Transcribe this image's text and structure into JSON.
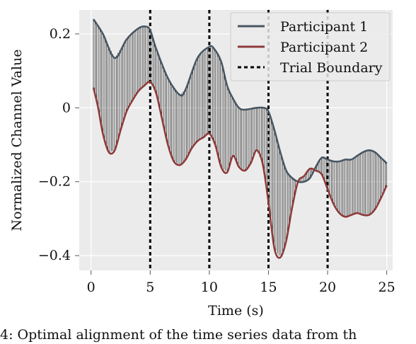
{
  "chart_data": {
    "type": "line",
    "title": "",
    "xlabel": "Time (s)",
    "ylabel": "Normalized Channel Value",
    "xlim": [
      -1,
      25.5
    ],
    "ylim": [
      -0.44,
      0.265
    ],
    "xticks": [
      0,
      5,
      10,
      15,
      20,
      25
    ],
    "xtick_labels": [
      "0",
      "5",
      "10",
      "15",
      "20",
      "25"
    ],
    "yticks": [
      -0.4,
      -0.2,
      0,
      0.2
    ],
    "ytick_labels": [
      "−0.4",
      "−0.2",
      "0",
      "0.2"
    ],
    "grid": true,
    "legend_position": "top-right",
    "series": [
      {
        "name": "Participant 1",
        "color": "#485663",
        "x": [
          0.2,
          1.0,
          2.0,
          3.0,
          4.0,
          4.6,
          5.0,
          5.5,
          6.5,
          7.5,
          8.0,
          9.0,
          10.0,
          10.4,
          11.0,
          11.5,
          12.0,
          12.5,
          13.0,
          14.0,
          14.6,
          15.0,
          15.5,
          16.0,
          16.5,
          17.0,
          17.5,
          18.0,
          18.5,
          19.0,
          19.5,
          20.0,
          20.5,
          21.0,
          21.5,
          22.0,
          22.5,
          23.0,
          23.5,
          24.0,
          24.5,
          25.0
        ],
        "y": [
          0.24,
          0.2,
          0.135,
          0.185,
          0.215,
          0.22,
          0.21,
          0.16,
          0.08,
          0.035,
          0.05,
          0.135,
          0.165,
          0.16,
          0.125,
          0.06,
          0.025,
          0.0,
          -0.005,
          0.0,
          0.0,
          -0.01,
          -0.06,
          -0.12,
          -0.17,
          -0.19,
          -0.2,
          -0.2,
          -0.19,
          -0.16,
          -0.135,
          -0.14,
          -0.145,
          -0.145,
          -0.14,
          -0.14,
          -0.13,
          -0.12,
          -0.115,
          -0.12,
          -0.135,
          -0.15
        ]
      },
      {
        "name": "Participant 2",
        "color": "#8e3b3b",
        "x": [
          0.2,
          0.6,
          1.0,
          1.5,
          2.0,
          2.5,
          3.0,
          3.5,
          4.0,
          4.5,
          5.0,
          5.5,
          6.0,
          6.5,
          7.0,
          7.5,
          8.0,
          8.5,
          9.0,
          9.5,
          10.0,
          10.5,
          11.0,
          11.5,
          12.0,
          12.5,
          13.0,
          13.5,
          14.0,
          14.5,
          15.0,
          15.5,
          16.0,
          16.5,
          17.0,
          17.5,
          18.0,
          18.5,
          19.0,
          19.5,
          20.0,
          20.5,
          21.0,
          21.5,
          22.0,
          22.5,
          23.0,
          23.5,
          24.0,
          24.5,
          25.0
        ],
        "y": [
          0.055,
          0.0,
          -0.07,
          -0.12,
          -0.115,
          -0.06,
          -0.01,
          0.02,
          0.045,
          0.06,
          0.07,
          0.04,
          -0.03,
          -0.1,
          -0.145,
          -0.155,
          -0.14,
          -0.11,
          -0.09,
          -0.08,
          -0.07,
          -0.1,
          -0.16,
          -0.175,
          -0.13,
          -0.16,
          -0.17,
          -0.15,
          -0.115,
          -0.15,
          -0.255,
          -0.38,
          -0.405,
          -0.36,
          -0.27,
          -0.2,
          -0.185,
          -0.165,
          -0.17,
          -0.18,
          -0.22,
          -0.26,
          -0.285,
          -0.295,
          -0.29,
          -0.285,
          -0.29,
          -0.29,
          -0.275,
          -0.245,
          -0.21
        ]
      }
    ],
    "alignment_links": {
      "color": "#000000",
      "description_hidden": true
    },
    "trial_boundaries": {
      "name": "Trial Boundary",
      "x": [
        5,
        10,
        15,
        20
      ],
      "color": "#000000"
    }
  },
  "caption_text": "4: Optimal alignment of the time series data from th"
}
